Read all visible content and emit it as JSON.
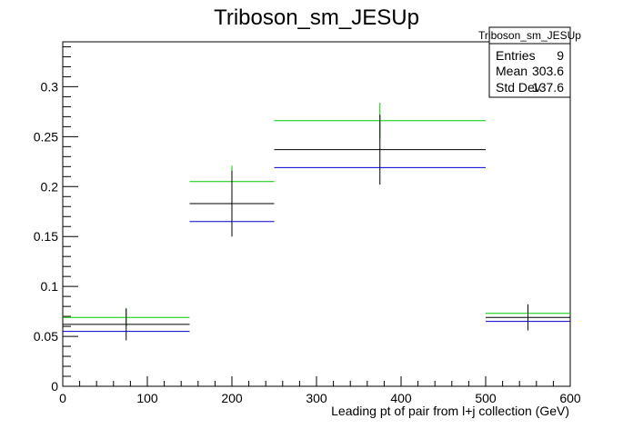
{
  "chart_data": {
    "type": "bar",
    "title": "Triboson_sm_JESUp",
    "xlabel": "Leading pt of pair from l+j collection (GeV)",
    "ylabel": "",
    "xlim": [
      0,
      600
    ],
    "ylim": [
      0,
      0.345
    ],
    "grid": false,
    "x_ticks": [
      0,
      100,
      200,
      300,
      400,
      500,
      600
    ],
    "y_ticks": [
      0,
      0.05,
      0.1,
      0.15,
      0.2,
      0.25,
      0.3
    ],
    "y_tick_labels": [
      "0",
      "0.05",
      "0.1",
      "0.15",
      "0.2",
      "0.25",
      "0.3"
    ],
    "bins": [
      [
        0,
        150
      ],
      [
        150,
        250
      ],
      [
        250,
        500
      ],
      [
        500,
        600
      ]
    ],
    "series": [
      {
        "color": "#00cc00",
        "values": [
          0.069,
          0.205,
          0.266,
          0.073
        ],
        "errors": [
          0.009,
          0.016,
          0.018,
          0.009
        ]
      },
      {
        "color": "#000000",
        "values": [
          0.062,
          0.183,
          0.237,
          0.069
        ],
        "errors": [
          0.016,
          0.033,
          0.035,
          0.013
        ]
      },
      {
        "color": "#0000cc",
        "values": [
          0.055,
          0.165,
          0.219,
          0.065
        ],
        "errors": [
          0,
          0,
          0,
          0
        ]
      }
    ],
    "stats_box": {
      "title": "Triboson_sm_JESUp",
      "rows": [
        {
          "label": "Entries",
          "value": "9"
        },
        {
          "label": "Mean",
          "value": "303.6"
        },
        {
          "label": "Std Dev",
          "value": "137.6"
        }
      ]
    }
  }
}
